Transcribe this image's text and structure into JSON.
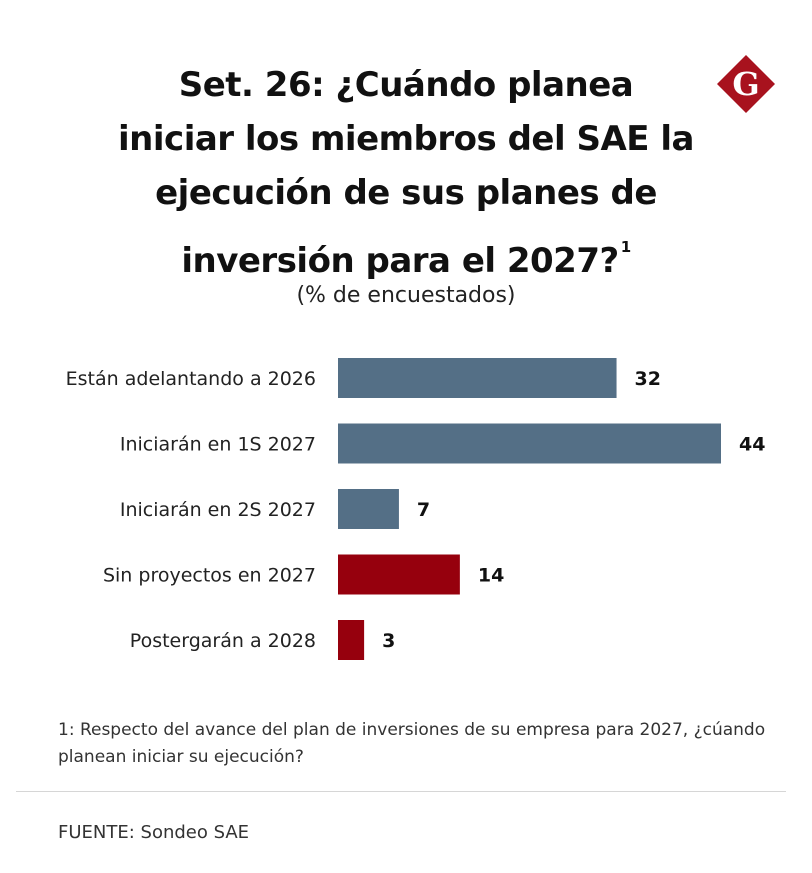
{
  "title": {
    "lines": [
      "Set. 26: ¿Cuándo planea",
      "iniciar los miembros del SAE la",
      "ejecución de sus planes de",
      "inversión para el 2027?"
    ],
    "footnote_marker": "1"
  },
  "subtitle": "(% de encuestados)",
  "logo": {
    "letter": "G",
    "color": "#a8121e"
  },
  "chart_data": {
    "type": "bar",
    "orientation": "horizontal",
    "categories": [
      "Están adelantando a 2026",
      "Iniciarán en 1S 2027",
      "Iniciarán en 2S 2027",
      "Sin proyectos en 2027",
      "Postergarán a 2028"
    ],
    "values": [
      32,
      44,
      7,
      14,
      3
    ],
    "value_labels": [
      "32",
      "44",
      "7",
      "14",
      "3"
    ],
    "colors": [
      "#546f86",
      "#546f86",
      "#546f86",
      "#96000d",
      "#96000d"
    ],
    "xlim": [
      0,
      44
    ],
    "grid": false,
    "legend": "none"
  },
  "footnote": "1: Respecto del avance del plan de inversiones de su empresa para 2027, ¿cúando planean iniciar su ejecución?",
  "source": "FUENTE: Sondeo SAE"
}
